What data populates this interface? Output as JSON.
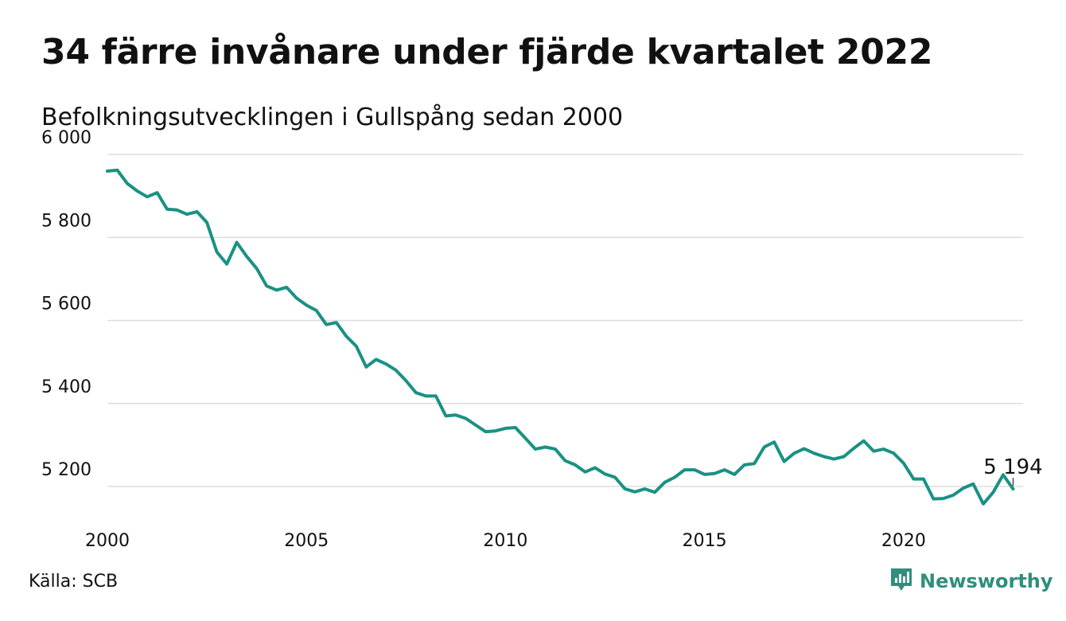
{
  "title": "34 färre invånare under fjärde kvartalet 2022",
  "subtitle": "Befolkningsutvecklingen i Gullspång sedan 2000",
  "source": "Källa: SCB",
  "brand": {
    "name": "Newsworthy",
    "icon": "newsworthy-logo-icon",
    "color": "#2f8f7c"
  },
  "colors": {
    "line": "#1a9184",
    "grid": "#dddddd",
    "text": "#111111"
  },
  "chart_data": {
    "type": "line",
    "title": "34 färre invånare under fjärde kvartalet 2022",
    "subtitle": "Befolkningsutvecklingen i Gullspång sedan 2000",
    "xlabel": "",
    "ylabel": "",
    "xlim": [
      2000,
      2023
    ],
    "ylim": [
      5120,
      6000
    ],
    "grid": true,
    "x_ticks": [
      2000,
      2005,
      2010,
      2015,
      2020
    ],
    "x_tick_labels": [
      "2000",
      "2005",
      "2010",
      "2015",
      "2020"
    ],
    "y_ticks": [
      5200,
      5400,
      5600,
      5800,
      6000
    ],
    "y_tick_labels": [
      "5 200",
      "5 400",
      "5 600",
      "5 800",
      "6 000"
    ],
    "annotation": {
      "x": 2022.75,
      "y": 5194,
      "text": "5 194"
    },
    "series": [
      {
        "x": [
          2000.0,
          2000.25,
          2000.5,
          2000.75,
          2001.0,
          2001.25,
          2001.5,
          2001.75,
          2002.0,
          2002.25,
          2002.5,
          2002.75,
          2003.0,
          2003.25,
          2003.5,
          2003.75,
          2004.0,
          2004.25,
          2004.5,
          2004.75,
          2005.0,
          2005.25,
          2005.5,
          2005.75,
          2006.0,
          2006.25,
          2006.5,
          2006.75,
          2007.0,
          2007.25,
          2007.5,
          2007.75,
          2008.0,
          2008.25,
          2008.5,
          2008.75,
          2009.0,
          2009.25,
          2009.5,
          2009.75,
          2010.0,
          2010.25,
          2010.5,
          2010.75,
          2011.0,
          2011.25,
          2011.5,
          2011.75,
          2012.0,
          2012.25,
          2012.5,
          2012.75,
          2013.0,
          2013.25,
          2013.5,
          2013.75,
          2014.0,
          2014.25,
          2014.5,
          2014.75,
          2015.0,
          2015.25,
          2015.5,
          2015.75,
          2016.0,
          2016.25,
          2016.5,
          2016.75,
          2017.0,
          2017.25,
          2017.5,
          2017.75,
          2018.0,
          2018.25,
          2018.5,
          2018.75,
          2019.0,
          2019.25,
          2019.5,
          2019.75,
          2020.0,
          2020.25,
          2020.5,
          2020.75,
          2021.0,
          2021.25,
          2021.5,
          2021.75,
          2022.0,
          2022.25,
          2022.5,
          2022.75
        ],
        "y": [
          5960,
          5962,
          5930,
          5912,
          5898,
          5908,
          5868,
          5866,
          5856,
          5862,
          5836,
          5765,
          5736,
          5788,
          5754,
          5725,
          5683,
          5673,
          5680,
          5654,
          5637,
          5624,
          5590,
          5595,
          5562,
          5538,
          5488,
          5506,
          5495,
          5480,
          5455,
          5426,
          5418,
          5418,
          5370,
          5372,
          5364,
          5348,
          5332,
          5334,
          5340,
          5342,
          5316,
          5290,
          5295,
          5290,
          5262,
          5252,
          5235,
          5245,
          5230,
          5222,
          5194,
          5187,
          5194,
          5186,
          5210,
          5222,
          5240,
          5240,
          5229,
          5231,
          5240,
          5229,
          5252,
          5255,
          5295,
          5307,
          5260,
          5280,
          5291,
          5280,
          5272,
          5266,
          5272,
          5292,
          5310,
          5285,
          5290,
          5280,
          5256,
          5218,
          5218,
          5170,
          5171,
          5179,
          5196,
          5206,
          5158,
          5186,
          5228,
          5194
        ]
      }
    ]
  }
}
